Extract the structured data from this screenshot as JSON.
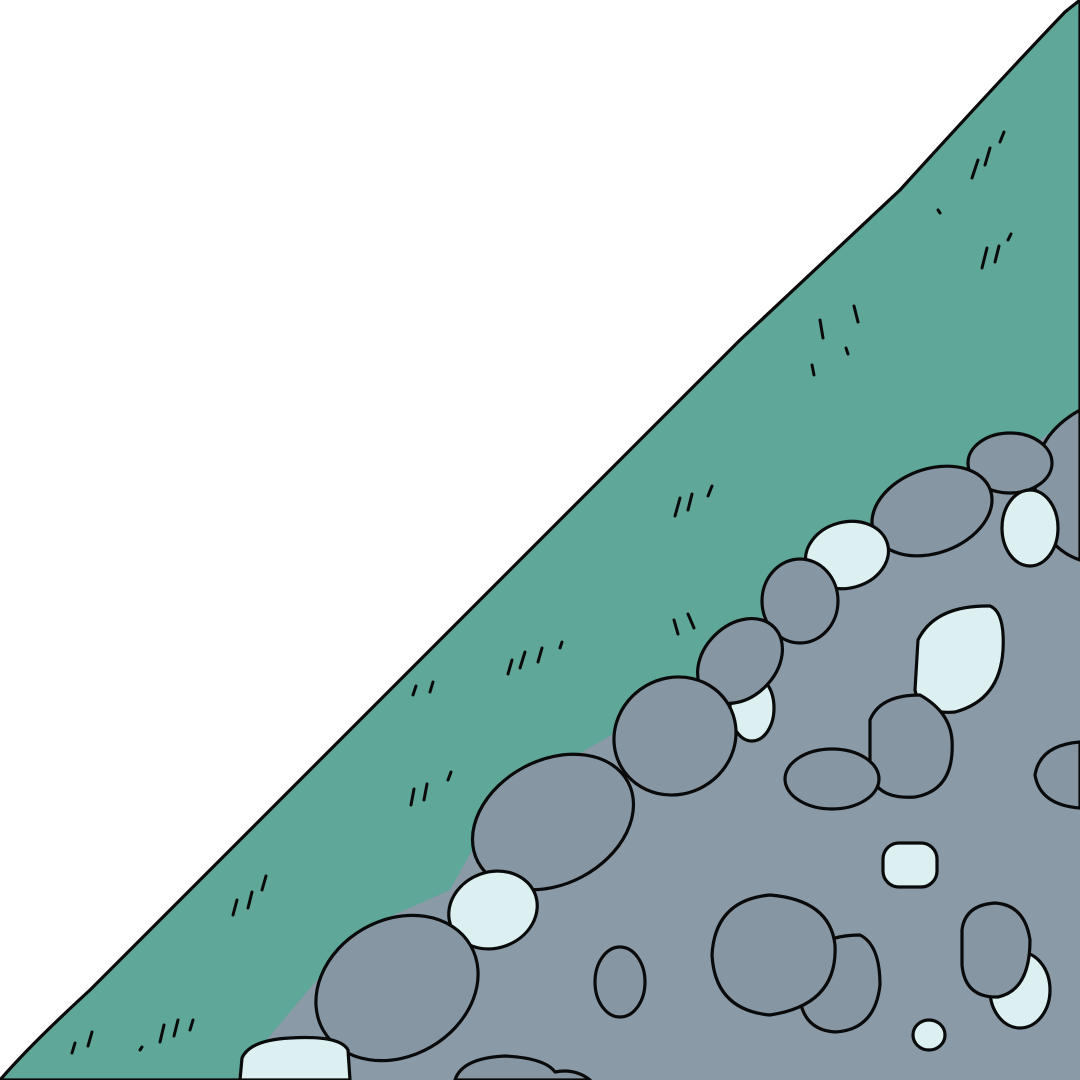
{
  "scene": {
    "description_visible_text": "",
    "colors": {
      "sky": "#ffffff",
      "grass": "#5fa799",
      "ground": "#8a9aa6",
      "stone_dark": "#8796a3",
      "stone_light": "#dcf0f2",
      "outline": "#0a0a0a"
    },
    "elements": [
      "grass-slope",
      "stone-ground",
      "boulder-border",
      "scattered-pebbles",
      "grass-tufts"
    ]
  }
}
